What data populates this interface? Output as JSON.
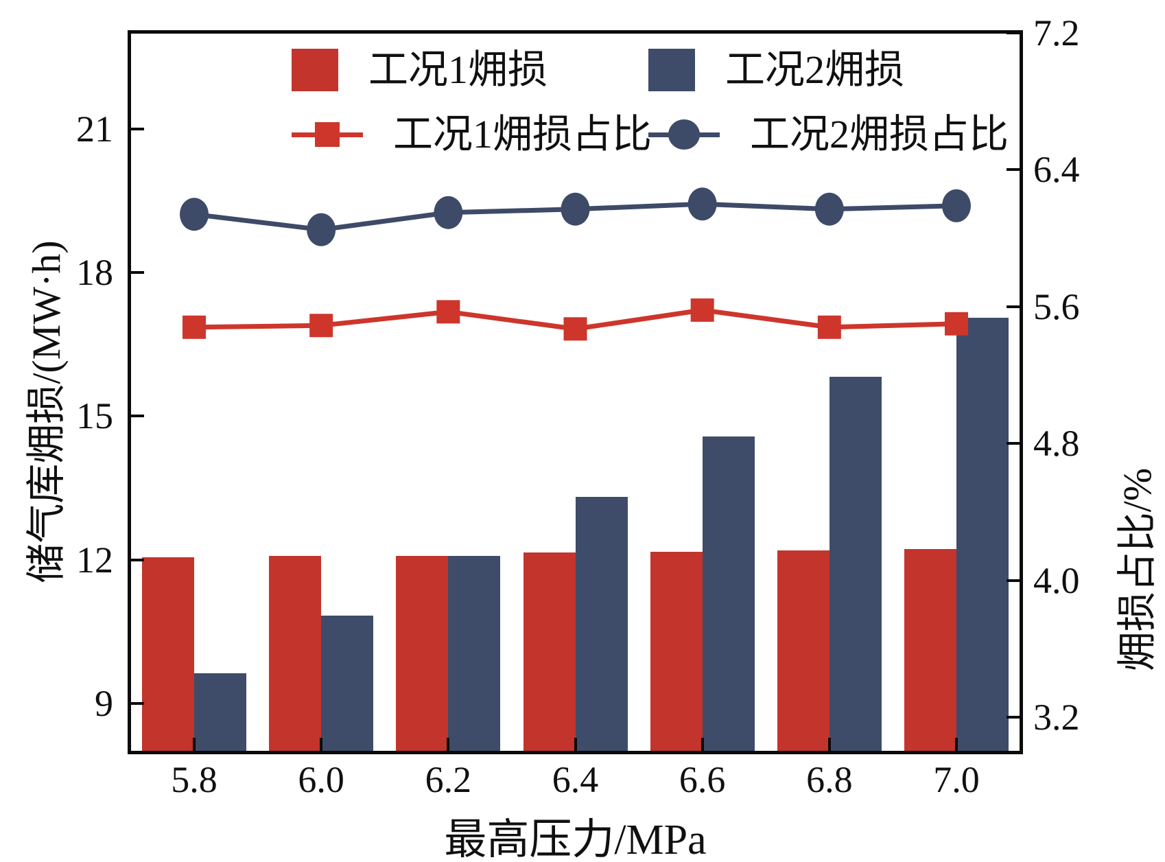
{
  "figure": {
    "background": "#ffffff",
    "frame_color": "#0a0a0a",
    "text_color": "#101010"
  },
  "chart_data": {
    "type": "bar+line",
    "grid": false,
    "legend_position": "top-inside",
    "x": {
      "label": "最高压力/MPa",
      "categories": [
        "5.8",
        "6.0",
        "6.2",
        "6.4",
        "6.6",
        "6.8",
        "7.0"
      ]
    },
    "left_axis": {
      "label": "储气库㶲损/(MW·h)",
      "tick_labels": [
        "9",
        "12",
        "15",
        "18",
        "21"
      ],
      "tick_values": [
        9,
        12,
        15,
        18,
        21
      ],
      "range": [
        8,
        23
      ]
    },
    "right_axis": {
      "label": "㶲损占比/%",
      "tick_labels": [
        "3.2",
        "4.0",
        "4.8",
        "5.6",
        "6.4",
        "7.2"
      ],
      "tick_values": [
        3.2,
        4.0,
        4.8,
        5.6,
        6.4,
        7.2
      ],
      "range": [
        3.0,
        7.2
      ]
    },
    "bar_series": [
      {
        "name": "工况1㶲损",
        "axis": "left",
        "color": "#c3342d",
        "values": [
          12.05,
          12.08,
          12.09,
          12.15,
          12.17,
          12.2,
          12.22
        ]
      },
      {
        "name": "工况2㶲损",
        "axis": "left",
        "color": "#3e4c69",
        "values": [
          9.63,
          10.83,
          12.08,
          13.32,
          14.58,
          15.82,
          17.05
        ]
      }
    ],
    "line_series": [
      {
        "name": "工况1㶲损占比",
        "axis": "right",
        "color": "#ce352b",
        "marker": "square",
        "values": [
          5.48,
          5.49,
          5.57,
          5.47,
          5.58,
          5.48,
          5.5
        ]
      },
      {
        "name": "工况2㶲损占比",
        "axis": "right",
        "color": "#3d4b68",
        "marker": "circle",
        "values": [
          6.14,
          6.05,
          6.15,
          6.17,
          6.2,
          6.17,
          6.19
        ]
      }
    ]
  }
}
